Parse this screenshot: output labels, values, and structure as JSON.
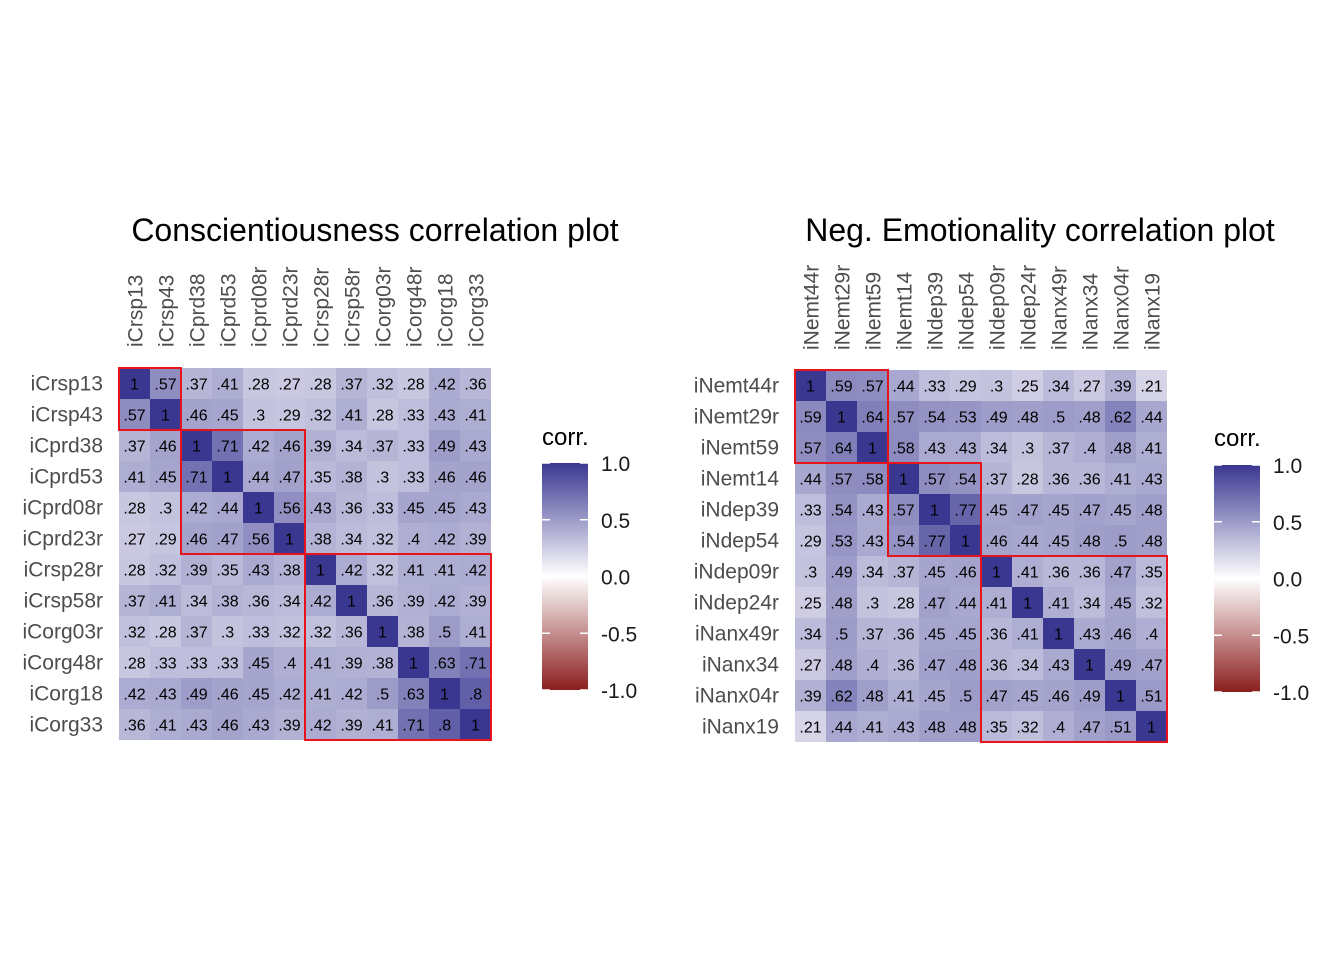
{
  "colors": {
    "high": "#3a3791",
    "mid": "#ffffff",
    "low": "#8b1e1e",
    "box": "#e8141c",
    "label": "#4d4d4d"
  },
  "chart_data": [
    {
      "type": "heatmap",
      "title": "Conscientiousness correlation plot",
      "variables": [
        "iCrsp13",
        "iCrsp43",
        "iCprd38",
        "iCprd53",
        "iCprd08r",
        "iCprd23r",
        "iCrsp28r",
        "iCrsp58r",
        "iCorg03r",
        "iCorg48r",
        "iCorg18",
        "iCorg33"
      ],
      "matrix": [
        [
          1,
          0.57,
          0.37,
          0.41,
          0.28,
          0.27,
          0.28,
          0.37,
          0.32,
          0.28,
          0.42,
          0.36
        ],
        [
          0.57,
          1,
          0.46,
          0.45,
          0.3,
          0.29,
          0.32,
          0.41,
          0.28,
          0.33,
          0.43,
          0.41
        ],
        [
          0.37,
          0.46,
          1,
          0.71,
          0.42,
          0.46,
          0.39,
          0.34,
          0.37,
          0.33,
          0.49,
          0.43
        ],
        [
          0.41,
          0.45,
          0.71,
          1,
          0.44,
          0.47,
          0.35,
          0.38,
          0.3,
          0.33,
          0.46,
          0.46
        ],
        [
          0.28,
          0.3,
          0.42,
          0.44,
          1,
          0.56,
          0.43,
          0.36,
          0.33,
          0.45,
          0.45,
          0.43
        ],
        [
          0.27,
          0.29,
          0.46,
          0.47,
          0.56,
          1,
          0.38,
          0.34,
          0.32,
          0.4,
          0.42,
          0.39
        ],
        [
          0.28,
          0.32,
          0.39,
          0.35,
          0.43,
          0.38,
          1,
          0.42,
          0.32,
          0.41,
          0.41,
          0.42
        ],
        [
          0.37,
          0.41,
          0.34,
          0.38,
          0.36,
          0.34,
          0.42,
          1,
          0.36,
          0.39,
          0.42,
          0.39
        ],
        [
          0.32,
          0.28,
          0.37,
          0.3,
          0.33,
          0.32,
          0.32,
          0.36,
          1,
          0.38,
          0.5,
          0.41
        ],
        [
          0.28,
          0.33,
          0.33,
          0.33,
          0.45,
          0.4,
          0.41,
          0.39,
          0.38,
          1,
          0.63,
          0.71
        ],
        [
          0.42,
          0.43,
          0.49,
          0.46,
          0.45,
          0.42,
          0.41,
          0.42,
          0.5,
          0.63,
          1,
          0.8
        ],
        [
          0.36,
          0.41,
          0.43,
          0.46,
          0.43,
          0.39,
          0.42,
          0.39,
          0.41,
          0.71,
          0.8,
          1
        ]
      ],
      "cell_labels": [
        [
          "1",
          ".57",
          ".37",
          ".41",
          ".28",
          ".27",
          ".28",
          ".37",
          ".32",
          ".28",
          ".42",
          ".36"
        ],
        [
          ".57",
          "1",
          ".46",
          ".45",
          ".3",
          ".29",
          ".32",
          ".41",
          ".28",
          ".33",
          ".43",
          ".41"
        ],
        [
          ".37",
          ".46",
          "1",
          ".71",
          ".42",
          ".46",
          ".39",
          ".34",
          ".37",
          ".33",
          ".49",
          ".43"
        ],
        [
          ".41",
          ".45",
          ".71",
          "1",
          ".44",
          ".47",
          ".35",
          ".38",
          ".3",
          ".33",
          ".46",
          ".46"
        ],
        [
          ".28",
          ".3",
          ".42",
          ".44",
          "1",
          ".56",
          ".43",
          ".36",
          ".33",
          ".45",
          ".45",
          ".43"
        ],
        [
          ".27",
          ".29",
          ".46",
          ".47",
          ".56",
          "1",
          ".38",
          ".34",
          ".32",
          ".4",
          ".42",
          ".39"
        ],
        [
          ".28",
          ".32",
          ".39",
          ".35",
          ".43",
          ".38",
          "1",
          ".42",
          ".32",
          ".41",
          ".41",
          ".42"
        ],
        [
          ".37",
          ".41",
          ".34",
          ".38",
          ".36",
          ".34",
          ".42",
          "1",
          ".36",
          ".39",
          ".42",
          ".39"
        ],
        [
          ".32",
          ".28",
          ".37",
          ".3",
          ".33",
          ".32",
          ".32",
          ".36",
          "1",
          ".38",
          ".5",
          ".41"
        ],
        [
          ".28",
          ".33",
          ".33",
          ".33",
          ".45",
          ".4",
          ".41",
          ".39",
          ".38",
          "1",
          ".63",
          ".71"
        ],
        [
          ".42",
          ".43",
          ".49",
          ".46",
          ".45",
          ".42",
          ".41",
          ".42",
          ".5",
          ".63",
          "1",
          ".8"
        ],
        [
          ".36",
          ".41",
          ".43",
          ".46",
          ".43",
          ".39",
          ".42",
          ".39",
          ".41",
          ".71",
          ".8",
          "1"
        ]
      ],
      "clusters": [
        [
          0,
          1
        ],
        [
          2,
          5
        ],
        [
          6,
          11
        ]
      ],
      "legend": {
        "title": "corr.",
        "ticks": [
          "1.0",
          "0.5",
          "0.0",
          "-0.5",
          "-1.0"
        ],
        "range": [
          -1,
          1
        ]
      }
    },
    {
      "type": "heatmap",
      "title": "Neg. Emotionality correlation plot",
      "variables": [
        "iNemt44r",
        "iNemt29r",
        "iNemt59",
        "iNemt14",
        "iNdep39",
        "iNdep54",
        "iNdep09r",
        "iNdep24r",
        "iNanx49r",
        "iNanx34",
        "iNanx04r",
        "iNanx19"
      ],
      "matrix": [
        [
          1,
          0.59,
          0.57,
          0.44,
          0.33,
          0.29,
          0.3,
          0.25,
          0.34,
          0.27,
          0.39,
          0.21
        ],
        [
          0.59,
          1,
          0.64,
          0.57,
          0.54,
          0.53,
          0.49,
          0.48,
          0.5,
          0.48,
          0.62,
          0.44
        ],
        [
          0.57,
          0.64,
          1,
          0.58,
          0.43,
          0.43,
          0.34,
          0.3,
          0.37,
          0.4,
          0.48,
          0.41
        ],
        [
          0.44,
          0.57,
          0.58,
          1,
          0.57,
          0.54,
          0.37,
          0.28,
          0.36,
          0.36,
          0.41,
          0.43
        ],
        [
          0.33,
          0.54,
          0.43,
          0.57,
          1,
          0.77,
          0.45,
          0.47,
          0.45,
          0.47,
          0.45,
          0.48
        ],
        [
          0.29,
          0.53,
          0.43,
          0.54,
          0.77,
          1,
          0.46,
          0.44,
          0.45,
          0.48,
          0.5,
          0.48
        ],
        [
          0.3,
          0.49,
          0.34,
          0.37,
          0.45,
          0.46,
          1,
          0.41,
          0.36,
          0.36,
          0.47,
          0.35
        ],
        [
          0.25,
          0.48,
          0.3,
          0.28,
          0.47,
          0.44,
          0.41,
          1,
          0.41,
          0.34,
          0.45,
          0.32
        ],
        [
          0.34,
          0.5,
          0.37,
          0.36,
          0.45,
          0.45,
          0.36,
          0.41,
          1,
          0.43,
          0.46,
          0.4
        ],
        [
          0.27,
          0.48,
          0.4,
          0.36,
          0.47,
          0.48,
          0.36,
          0.34,
          0.43,
          1,
          0.49,
          0.47
        ],
        [
          0.39,
          0.62,
          0.48,
          0.41,
          0.45,
          0.5,
          0.47,
          0.45,
          0.46,
          0.49,
          1,
          0.51
        ],
        [
          0.21,
          0.44,
          0.41,
          0.43,
          0.48,
          0.48,
          0.35,
          0.32,
          0.4,
          0.47,
          0.51,
          1
        ]
      ],
      "cell_labels": [
        [
          "1",
          ".59",
          ".57",
          ".44",
          ".33",
          ".29",
          ".3",
          ".25",
          ".34",
          ".27",
          ".39",
          ".21"
        ],
        [
          ".59",
          "1",
          ".64",
          ".57",
          ".54",
          ".53",
          ".49",
          ".48",
          ".5",
          ".48",
          ".62",
          ".44"
        ],
        [
          ".57",
          ".64",
          "1",
          ".58",
          ".43",
          ".43",
          ".34",
          ".3",
          ".37",
          ".4",
          ".48",
          ".41"
        ],
        [
          ".44",
          ".57",
          ".58",
          "1",
          ".57",
          ".54",
          ".37",
          ".28",
          ".36",
          ".36",
          ".41",
          ".43"
        ],
        [
          ".33",
          ".54",
          ".43",
          ".57",
          "1",
          ".77",
          ".45",
          ".47",
          ".45",
          ".47",
          ".45",
          ".48"
        ],
        [
          ".29",
          ".53",
          ".43",
          ".54",
          ".77",
          "1",
          ".46",
          ".44",
          ".45",
          ".48",
          ".5",
          ".48"
        ],
        [
          ".3",
          ".49",
          ".34",
          ".37",
          ".45",
          ".46",
          "1",
          ".41",
          ".36",
          ".36",
          ".47",
          ".35"
        ],
        [
          ".25",
          ".48",
          ".3",
          ".28",
          ".47",
          ".44",
          ".41",
          "1",
          ".41",
          ".34",
          ".45",
          ".32"
        ],
        [
          ".34",
          ".5",
          ".37",
          ".36",
          ".45",
          ".45",
          ".36",
          ".41",
          "1",
          ".43",
          ".46",
          ".4"
        ],
        [
          ".27",
          ".48",
          ".4",
          ".36",
          ".47",
          ".48",
          ".36",
          ".34",
          ".43",
          "1",
          ".49",
          ".47"
        ],
        [
          ".39",
          ".62",
          ".48",
          ".41",
          ".45",
          ".5",
          ".47",
          ".45",
          ".46",
          ".49",
          "1",
          ".51"
        ],
        [
          ".21",
          ".44",
          ".41",
          ".43",
          ".48",
          ".48",
          ".35",
          ".32",
          ".4",
          ".47",
          ".51",
          "1"
        ]
      ],
      "clusters": [
        [
          0,
          2
        ],
        [
          3,
          5
        ],
        [
          6,
          11
        ]
      ],
      "legend": {
        "title": "corr.",
        "ticks": [
          "1.0",
          "0.5",
          "0.0",
          "-0.5",
          "-1.0"
        ],
        "range": [
          -1,
          1
        ]
      }
    }
  ]
}
